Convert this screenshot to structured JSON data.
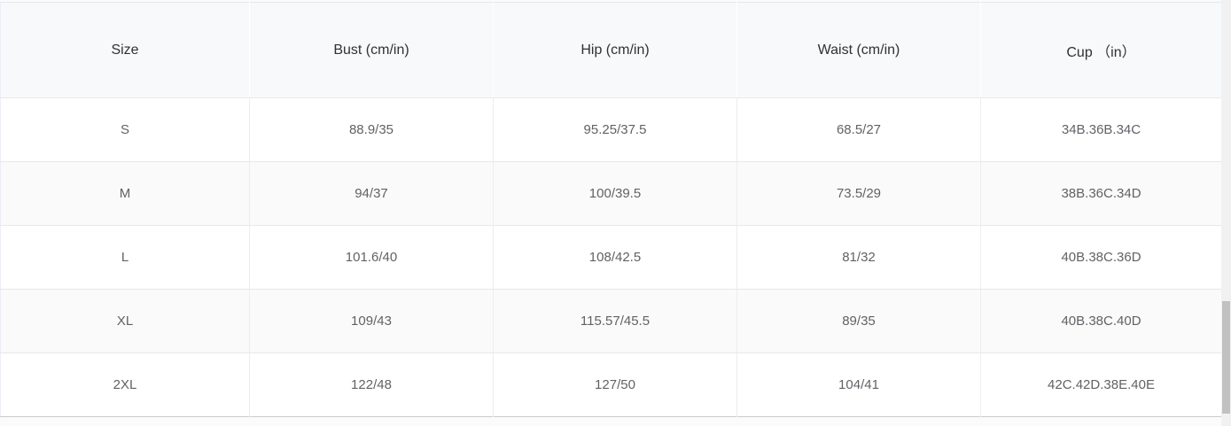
{
  "table": {
    "title": "size-chart",
    "columns": [
      "Size",
      "Bust (cm/in)",
      "Hip (cm/in)",
      "Waist (cm/in)",
      "Cup （in）"
    ],
    "rows": [
      [
        "S",
        "88.9/35",
        "95.25/37.5",
        "68.5/27",
        "34B.36B.34C"
      ],
      [
        "M",
        "94/37",
        "100/39.5",
        "73.5/29",
        "38B.36C.34D"
      ],
      [
        "L",
        "101.6/40",
        "108/42.5",
        "81/32",
        "40B.38C.36D"
      ],
      [
        "XL",
        "109/43",
        "115.57/45.5",
        "89/35",
        "40B.38C.40D"
      ],
      [
        "2XL",
        "122/48",
        "127/50",
        "104/41",
        "42C.42D.38E.40E"
      ]
    ]
  },
  "colors": {
    "header_background": "#f8f9fa",
    "stripe_row_background": "#fafafa",
    "row_background": "#ffffff",
    "inner_border": "#e8e8e8",
    "outer_bottom_border": "#c8cacc",
    "header_text": "#303133",
    "body_text": "#606266",
    "scrollbar_track": "#f1f1f1",
    "scrollbar_thumb": "#c1c1c1"
  }
}
